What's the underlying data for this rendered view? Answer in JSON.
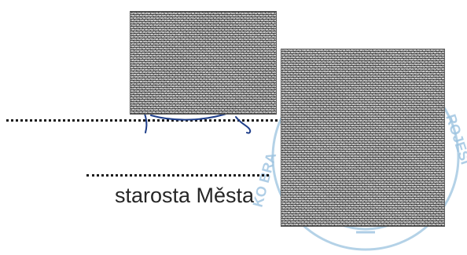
{
  "document": {
    "signatory_caption": "starosta Města"
  },
  "stamp": {
    "color": "#7fb3d8",
    "lettering_left": "KO BRA",
    "lettering_right": "ROJESI"
  },
  "colors": {
    "ink": "#262626",
    "signature_ink": "#1f3f8a"
  }
}
